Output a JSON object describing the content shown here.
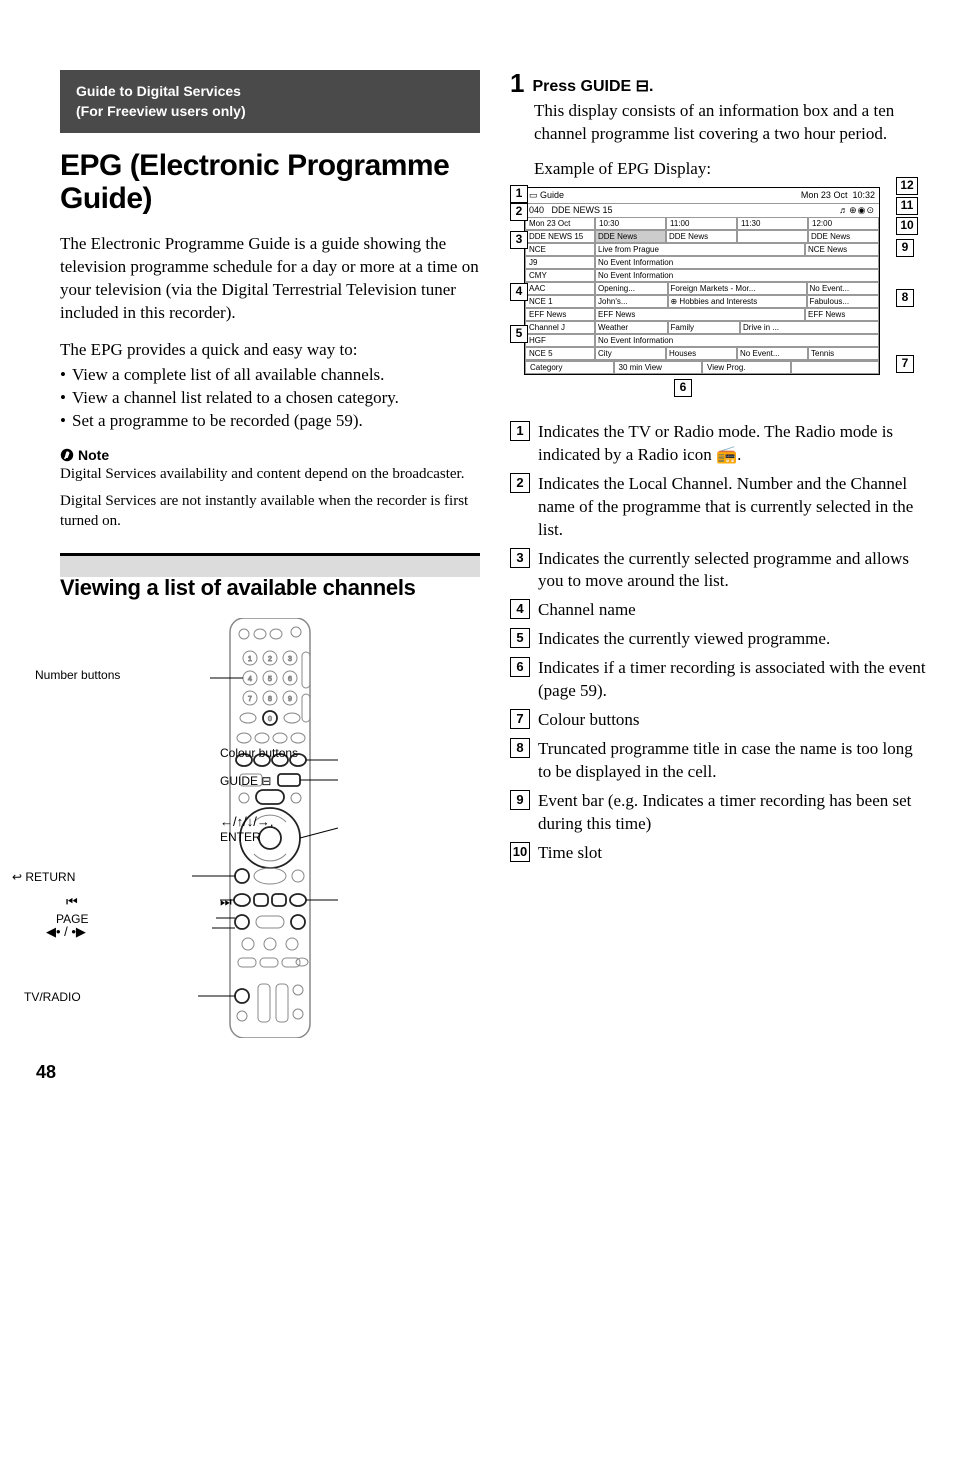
{
  "pageNumber": "48",
  "header": {
    "line1": "Guide to Digital Services",
    "line2": "(For Freeview users only)"
  },
  "mainHeading": "EPG (Electronic Programme Guide)",
  "intro": "The Electronic Programme Guide is a guide showing the television programme schedule for a day or more at a time on your television (via the Digital Terrestrial Television tuner included in this recorder).",
  "epgProvides": "The EPG provides a quick and easy way to:",
  "epgBullets": [
    "View a complete list of all available channels.",
    "View a channel list related to a chosen category.",
    "Set a programme to be recorded (page 59)."
  ],
  "noteHead": "Note",
  "noteText1": "Digital Services availability and content depend on the broadcaster.",
  "noteText2": "Digital Services are not instantly available when the recorder is first turned on.",
  "subHeading": "Viewing a list of available channels",
  "remoteLabels": {
    "numberButtons": "Number buttons",
    "return": "RETURN",
    "prevTrack": "",
    "page": "PAGE",
    "leftRight": "",
    "tvRadio": "TV/RADIO",
    "colourButtons": "Colour buttons",
    "guide": "GUIDE",
    "arrowsEnter": "ENTER",
    "nextTrack": ""
  },
  "step": {
    "num": "1",
    "head": "Press GUIDE",
    "body": "This display consists of an information box and a ten channel programme list covering a two hour period.",
    "example": "Example of EPG Display:"
  },
  "epg": {
    "title": "Guide",
    "date": "Mon 23 Oct",
    "time": "10:32",
    "chNum": "040",
    "chName": "DDE NEWS 15",
    "timeColLabel": "Mon 23 Oct",
    "timeCols": [
      "10:30",
      "11:00",
      "11:30",
      "12:00"
    ],
    "rows": [
      {
        "ch": "DDE NEWS 15",
        "cells": [
          {
            "t": "DDE News",
            "sel": true
          },
          {
            "t": "DDE News"
          },
          {
            "t": ""
          },
          {
            "t": "DDE News"
          }
        ]
      },
      {
        "ch": "NCE",
        "cells": [
          {
            "t": "Live from Prague",
            "span": 3
          },
          {
            "t": "NCE News"
          }
        ]
      },
      {
        "ch": "J9",
        "cells": [
          {
            "t": "No Event Information",
            "span": 4
          }
        ]
      },
      {
        "ch": "CMY",
        "cells": [
          {
            "t": "No Event Information",
            "span": 4
          }
        ]
      },
      {
        "ch": "AAC",
        "cells": [
          {
            "t": "Opening..."
          },
          {
            "t": "Foreign Markets - Mor...",
            "span": 2
          },
          {
            "t": "No Event..."
          }
        ]
      },
      {
        "ch": "NCE 1",
        "cells": [
          {
            "t": "John's..."
          },
          {
            "t": "⊕ Hobbies and Interests",
            "span": 2
          },
          {
            "t": "Fabulous..."
          }
        ]
      },
      {
        "ch": "EFF News",
        "cells": [
          {
            "t": "EFF News",
            "span": 3
          },
          {
            "t": "EFF News"
          }
        ]
      },
      {
        "ch": "Channel J",
        "cells": [
          {
            "t": "Weather"
          },
          {
            "t": "Family"
          },
          {
            "t": "Drive in ...",
            "span": 2
          }
        ]
      },
      {
        "ch": "HGF",
        "cells": [
          {
            "t": "No Event Information",
            "span": 4
          }
        ]
      },
      {
        "ch": "NCE 5",
        "cells": [
          {
            "t": "City"
          },
          {
            "t": "Houses"
          },
          {
            "t": "No Event..."
          },
          {
            "t": "Tennis"
          }
        ]
      }
    ],
    "footer": [
      "Category",
      "30 min View",
      "View Prog.",
      ""
    ]
  },
  "legend": [
    "Indicates the TV or Radio mode. The Radio mode is indicated by a Radio icon 📻.",
    "Indicates the Local Channel. Number and the Channel name of the programme that is currently selected in the list.",
    "Indicates the currently selected programme and allows you to move around the list.",
    "Channel name",
    "Indicates the currently viewed programme.",
    "Indicates if a timer recording is associated with the event (page 59).",
    "Colour buttons",
    "Truncated programme title in case the name is too long to be displayed in the cell.",
    "Event bar (e.g. Indicates a timer recording has been set during this time)",
    "Time slot"
  ]
}
